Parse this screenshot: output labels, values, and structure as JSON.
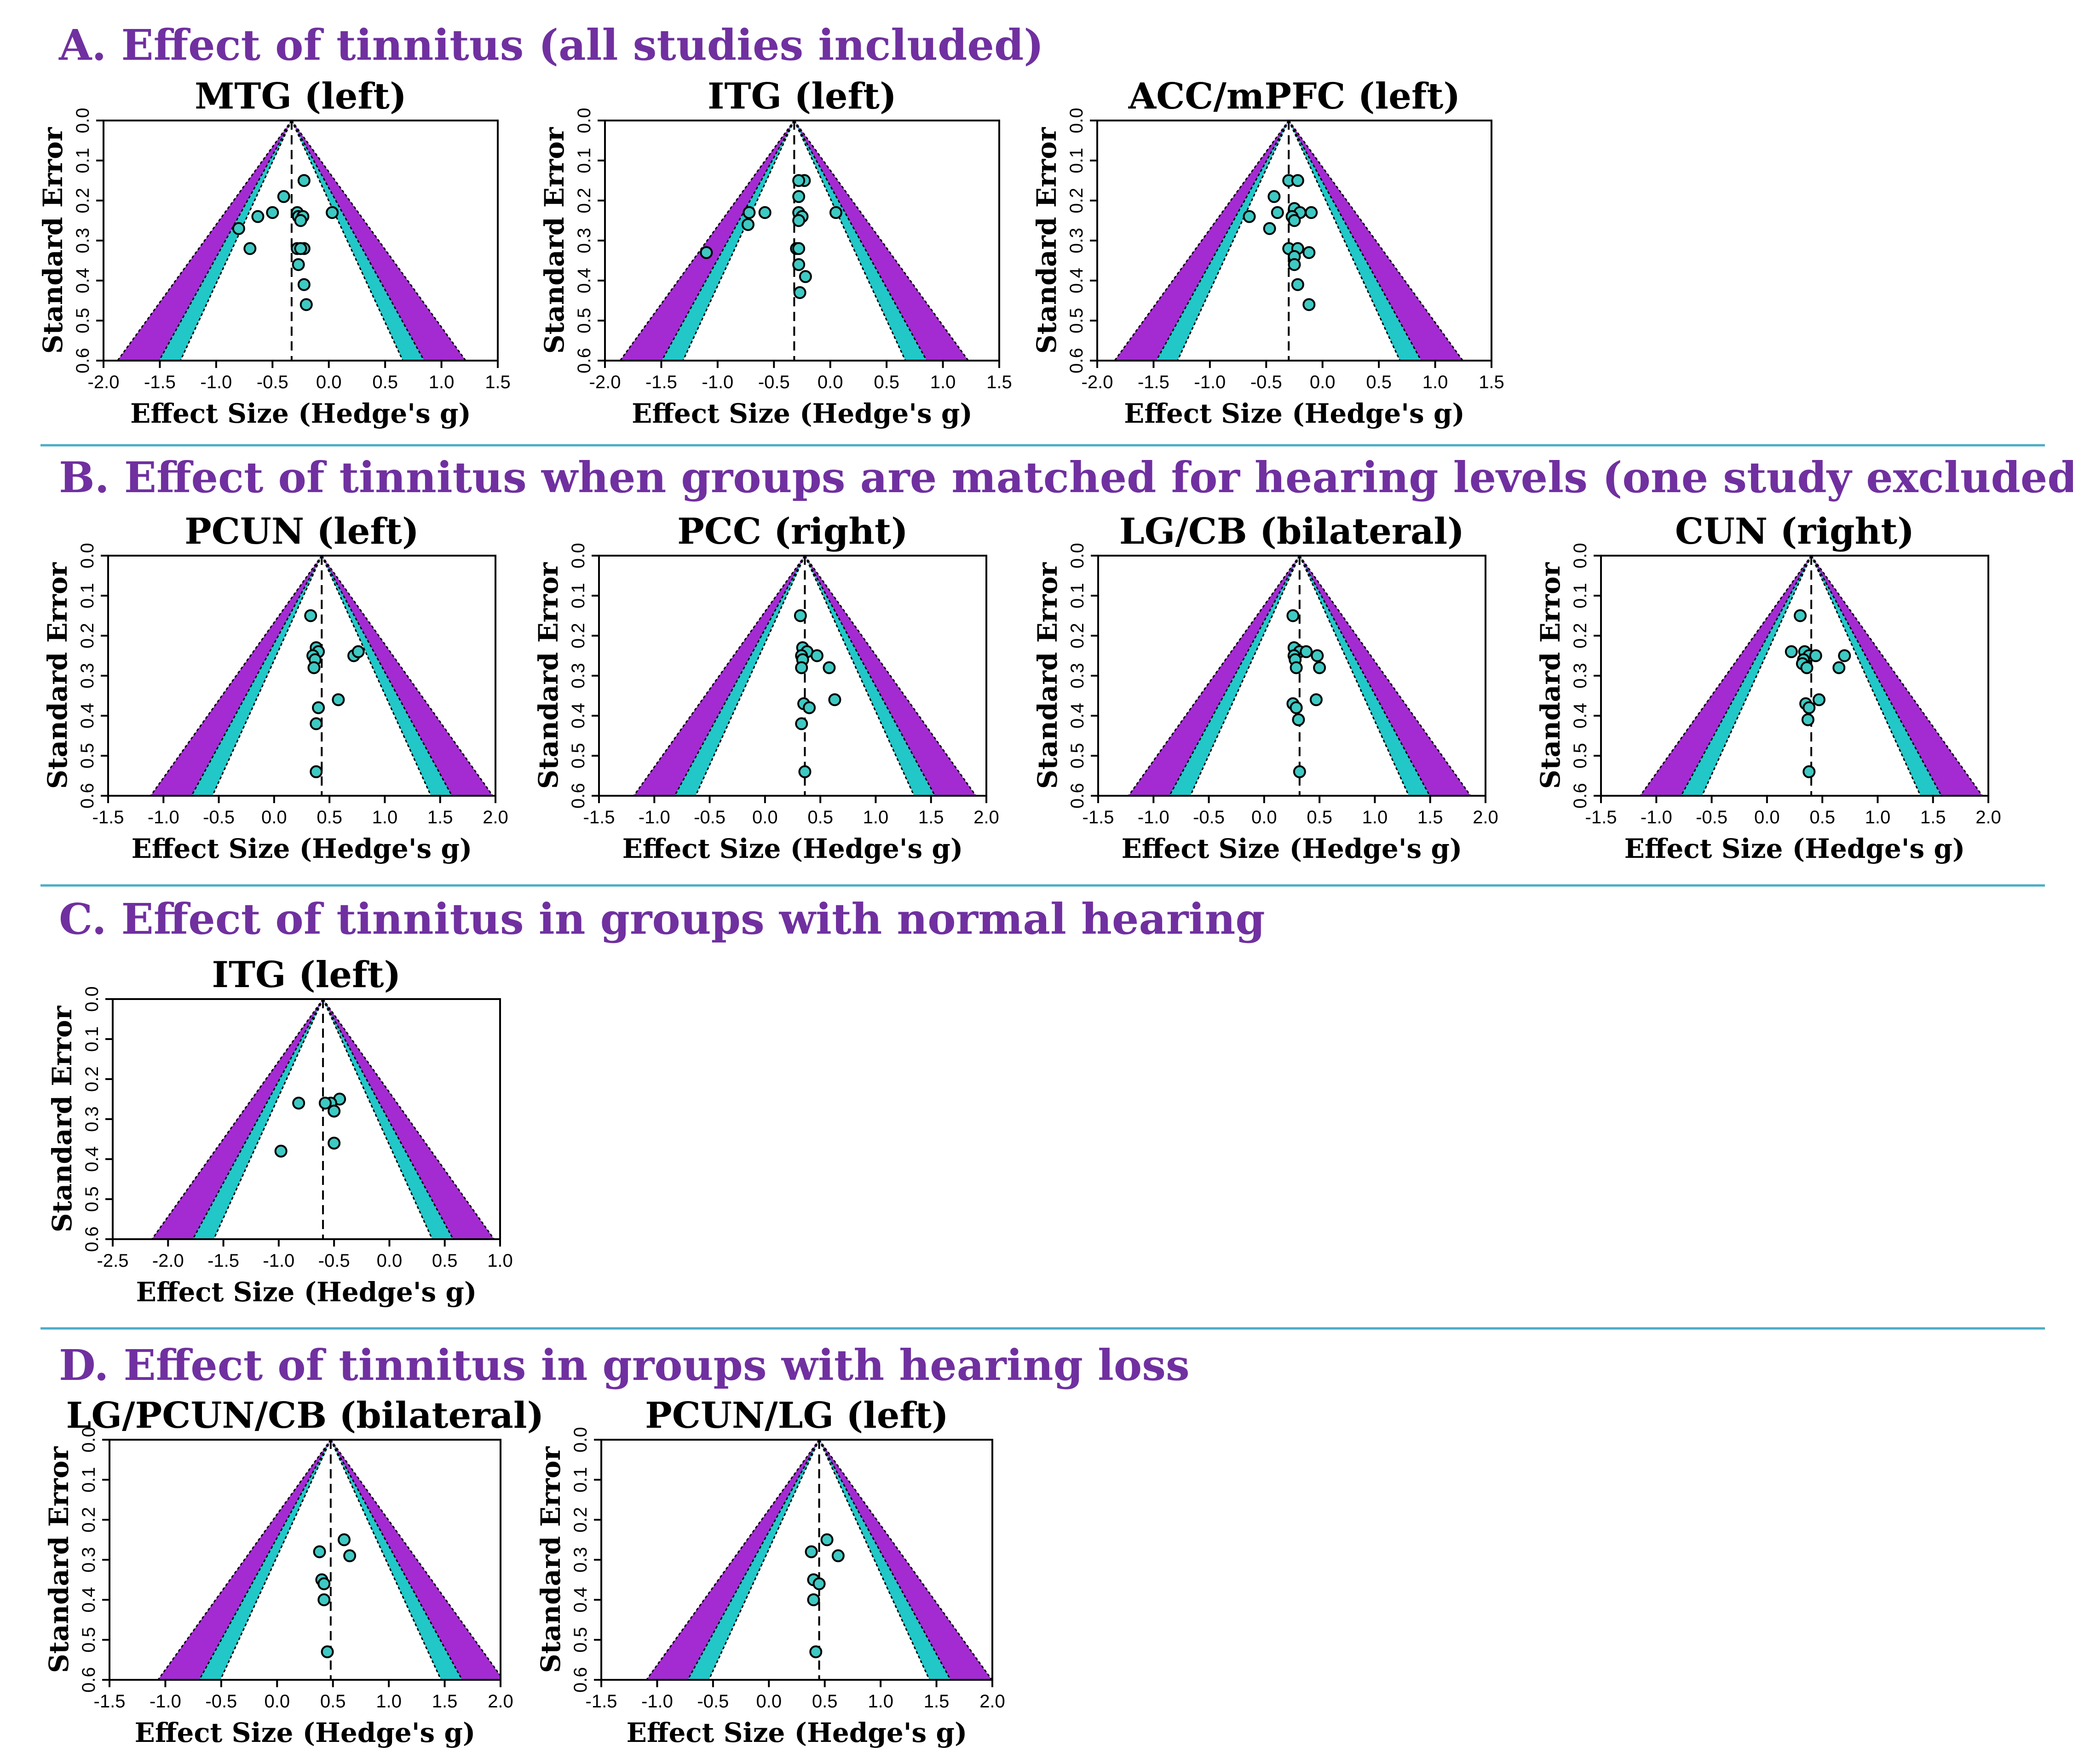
{
  "sections": [
    {
      "title": "A. Effect of tinnitus (all studies included)"
    },
    {
      "title": "B. Effect of tinnitus when groups are matched for hearing levels (one study excluded)"
    },
    {
      "title": "C. Effect of tinnitus in groups with normal hearing"
    },
    {
      "title": "D. Effect of tinnitus in groups with hearing loss"
    }
  ],
  "colors": {
    "section_title": "#7030a0",
    "divider": "#4bacc6",
    "outer_band": "#a32bd1",
    "inner_band": "#22c7c8",
    "point_fill": "#3ec9c3",
    "point_stroke": "#000000"
  },
  "chart_data": [
    {
      "type": "scatter",
      "section": 0,
      "title": "MTG (left)",
      "xlabel": "Effect Size (Hedge's g)",
      "ylabel": "Standard Error",
      "xlim": [
        -2.0,
        1.5
      ],
      "xticks": [
        -2.0,
        -1.5,
        -1.0,
        -0.5,
        0.0,
        0.5,
        1.0,
        1.5
      ],
      "ylim": [
        0,
        0.6
      ],
      "yticks": [
        0.0,
        0.1,
        0.2,
        0.3,
        0.4,
        0.5,
        0.6
      ],
      "y_inverted": true,
      "mean": -0.33,
      "points": [
        [
          -0.22,
          0.15
        ],
        [
          -0.4,
          0.19
        ],
        [
          -0.5,
          0.23
        ],
        [
          -0.63,
          0.24
        ],
        [
          -0.28,
          0.23
        ],
        [
          -0.8,
          0.27
        ],
        [
          -0.27,
          0.24
        ],
        [
          -0.23,
          0.24
        ],
        [
          -0.25,
          0.25
        ],
        [
          0.03,
          0.23
        ],
        [
          -0.7,
          0.32
        ],
        [
          -0.28,
          0.32
        ],
        [
          -0.22,
          0.32
        ],
        [
          -0.25,
          0.32
        ],
        [
          -0.27,
          0.36
        ],
        [
          -0.22,
          0.41
        ],
        [
          -0.2,
          0.46
        ]
      ]
    },
    {
      "type": "scatter",
      "section": 0,
      "title": "ITG (left)",
      "xlabel": "Effect Size (Hedge's g)",
      "ylabel": "Standard Error",
      "xlim": [
        -2.0,
        1.5
      ],
      "xticks": [
        -2.0,
        -1.5,
        -1.0,
        -0.5,
        0.0,
        0.5,
        1.0,
        1.5
      ],
      "ylim": [
        0,
        0.6
      ],
      "yticks": [
        0.0,
        0.1,
        0.2,
        0.3,
        0.4,
        0.5,
        0.6
      ],
      "y_inverted": true,
      "mean": -0.32,
      "points": [
        [
          -0.23,
          0.15
        ],
        [
          -0.28,
          0.15
        ],
        [
          -0.28,
          0.19
        ],
        [
          -0.28,
          0.23
        ],
        [
          -0.25,
          0.24
        ],
        [
          -0.28,
          0.25
        ],
        [
          -0.58,
          0.23
        ],
        [
          -0.72,
          0.23
        ],
        [
          0.05,
          0.23
        ],
        [
          -0.73,
          0.26
        ],
        [
          -0.3,
          0.32
        ],
        [
          -0.28,
          0.32
        ],
        [
          -1.1,
          0.33
        ],
        [
          -0.28,
          0.36
        ],
        [
          -0.22,
          0.39
        ],
        [
          -0.27,
          0.43
        ]
      ]
    },
    {
      "type": "scatter",
      "section": 0,
      "title": "ACC/mPFC (left)",
      "xlabel": "Effect Size (Hedge's g)",
      "ylabel": "Standard Error",
      "xlim": [
        -2.0,
        1.5
      ],
      "xticks": [
        -2.0,
        -1.5,
        -1.0,
        -0.5,
        0.0,
        0.5,
        1.0,
        1.5
      ],
      "ylim": [
        0,
        0.6
      ],
      "yticks": [
        0.0,
        0.1,
        0.2,
        0.3,
        0.4,
        0.5,
        0.6
      ],
      "y_inverted": true,
      "mean": -0.3,
      "points": [
        [
          -0.3,
          0.15
        ],
        [
          -0.22,
          0.15
        ],
        [
          -0.43,
          0.19
        ],
        [
          -0.25,
          0.22
        ],
        [
          -0.4,
          0.23
        ],
        [
          -0.2,
          0.23
        ],
        [
          -0.27,
          0.24
        ],
        [
          -0.25,
          0.25
        ],
        [
          -0.1,
          0.23
        ],
        [
          -0.65,
          0.24
        ],
        [
          -0.47,
          0.27
        ],
        [
          -0.3,
          0.32
        ],
        [
          -0.22,
          0.32
        ],
        [
          -0.25,
          0.34
        ],
        [
          -0.12,
          0.33
        ],
        [
          -0.25,
          0.36
        ],
        [
          -0.22,
          0.41
        ],
        [
          -0.12,
          0.46
        ]
      ]
    },
    {
      "type": "scatter",
      "section": 1,
      "title": "PCUN (left)",
      "xlabel": "Effect Size (Hedge's g)",
      "ylabel": "Standard Error",
      "xlim": [
        -1.5,
        2.0
      ],
      "xticks": [
        -1.5,
        -1.0,
        -0.5,
        0.0,
        0.5,
        1.0,
        1.5,
        2.0
      ],
      "ylim": [
        0,
        0.6
      ],
      "yticks": [
        0.0,
        0.1,
        0.2,
        0.3,
        0.4,
        0.5,
        0.6
      ],
      "y_inverted": true,
      "mean": 0.43,
      "points": [
        [
          0.33,
          0.15
        ],
        [
          0.38,
          0.23
        ],
        [
          0.4,
          0.24
        ],
        [
          0.35,
          0.25
        ],
        [
          0.37,
          0.26
        ],
        [
          0.36,
          0.28
        ],
        [
          0.72,
          0.25
        ],
        [
          0.76,
          0.24
        ],
        [
          0.58,
          0.36
        ],
        [
          0.4,
          0.38
        ],
        [
          0.38,
          0.42
        ],
        [
          0.38,
          0.54
        ]
      ]
    },
    {
      "type": "scatter",
      "section": 1,
      "title": "PCC (right)",
      "xlabel": "Effect Size (Hedge's g)",
      "ylabel": "Standard Error",
      "xlim": [
        -1.5,
        2.0
      ],
      "xticks": [
        -1.5,
        -1.0,
        -0.5,
        0.0,
        0.5,
        1.0,
        1.5,
        2.0
      ],
      "ylim": [
        0,
        0.6
      ],
      "yticks": [
        0.0,
        0.1,
        0.2,
        0.3,
        0.4,
        0.5,
        0.6
      ],
      "y_inverted": true,
      "mean": 0.36,
      "points": [
        [
          0.32,
          0.15
        ],
        [
          0.34,
          0.23
        ],
        [
          0.38,
          0.24
        ],
        [
          0.33,
          0.25
        ],
        [
          0.34,
          0.26
        ],
        [
          0.33,
          0.28
        ],
        [
          0.47,
          0.25
        ],
        [
          0.58,
          0.28
        ],
        [
          0.63,
          0.36
        ],
        [
          0.35,
          0.37
        ],
        [
          0.4,
          0.38
        ],
        [
          0.33,
          0.42
        ],
        [
          0.36,
          0.54
        ]
      ]
    },
    {
      "type": "scatter",
      "section": 1,
      "title": "LG/CB (bilateral)",
      "xlabel": "Effect Size (Hedge's g)",
      "ylabel": "Standard Error",
      "xlim": [
        -1.5,
        2.0
      ],
      "xticks": [
        -1.5,
        -1.0,
        -0.5,
        0.0,
        0.5,
        1.0,
        1.5,
        2.0
      ],
      "ylim": [
        0,
        0.6
      ],
      "yticks": [
        0.0,
        0.1,
        0.2,
        0.3,
        0.4,
        0.5,
        0.6
      ],
      "y_inverted": true,
      "mean": 0.32,
      "points": [
        [
          0.26,
          0.15
        ],
        [
          0.27,
          0.23
        ],
        [
          0.32,
          0.24
        ],
        [
          0.27,
          0.25
        ],
        [
          0.28,
          0.26
        ],
        [
          0.29,
          0.28
        ],
        [
          0.38,
          0.24
        ],
        [
          0.48,
          0.25
        ],
        [
          0.5,
          0.28
        ],
        [
          0.47,
          0.36
        ],
        [
          0.26,
          0.37
        ],
        [
          0.29,
          0.38
        ],
        [
          0.31,
          0.41
        ],
        [
          0.32,
          0.54
        ]
      ]
    },
    {
      "type": "scatter",
      "section": 1,
      "title": "CUN (right)",
      "xlabel": "Effect Size (Hedge's g)",
      "ylabel": "Standard Error",
      "xlim": [
        -1.5,
        2.0
      ],
      "xticks": [
        -1.5,
        -1.0,
        -0.5,
        0.0,
        0.5,
        1.0,
        1.5,
        2.0
      ],
      "ylim": [
        0,
        0.6
      ],
      "yticks": [
        0.0,
        0.1,
        0.2,
        0.3,
        0.4,
        0.5,
        0.6
      ],
      "y_inverted": true,
      "mean": 0.4,
      "points": [
        [
          0.3,
          0.15
        ],
        [
          0.22,
          0.24
        ],
        [
          0.34,
          0.24
        ],
        [
          0.38,
          0.25
        ],
        [
          0.44,
          0.25
        ],
        [
          0.33,
          0.26
        ],
        [
          0.32,
          0.27
        ],
        [
          0.36,
          0.28
        ],
        [
          0.7,
          0.25
        ],
        [
          0.65,
          0.28
        ],
        [
          0.47,
          0.36
        ],
        [
          0.35,
          0.37
        ],
        [
          0.38,
          0.38
        ],
        [
          0.37,
          0.41
        ],
        [
          0.38,
          0.54
        ]
      ]
    },
    {
      "type": "scatter",
      "section": 2,
      "title": "ITG (left)",
      "xlabel": "Effect Size (Hedge's g)",
      "ylabel": "Standard Error",
      "xlim": [
        -2.5,
        1.0
      ],
      "xticks": [
        -2.5,
        -2.0,
        -1.5,
        -1.0,
        -0.5,
        0.0,
        0.5,
        1.0
      ],
      "ylim": [
        0,
        0.6
      ],
      "yticks": [
        0.0,
        0.1,
        0.2,
        0.3,
        0.4,
        0.5,
        0.6
      ],
      "y_inverted": true,
      "mean": -0.6,
      "points": [
        [
          -0.45,
          0.25
        ],
        [
          -0.53,
          0.26
        ],
        [
          -0.58,
          0.26
        ],
        [
          -0.5,
          0.28
        ],
        [
          -0.82,
          0.26
        ],
        [
          -0.5,
          0.36
        ],
        [
          -0.98,
          0.38
        ]
      ]
    },
    {
      "type": "scatter",
      "section": 3,
      "title": "LG/PCUN/CB (bilateral)",
      "xlabel": "Effect Size (Hedge's g)",
      "ylabel": "Standard Error",
      "xlim": [
        -1.5,
        2.0
      ],
      "xticks": [
        -1.5,
        -1.0,
        -0.5,
        0.0,
        0.5,
        1.0,
        1.5,
        2.0
      ],
      "ylim": [
        0,
        0.6
      ],
      "yticks": [
        0.0,
        0.1,
        0.2,
        0.3,
        0.4,
        0.5,
        0.6
      ],
      "y_inverted": true,
      "mean": 0.48,
      "points": [
        [
          0.6,
          0.25
        ],
        [
          0.38,
          0.28
        ],
        [
          0.65,
          0.29
        ],
        [
          0.4,
          0.35
        ],
        [
          0.42,
          0.36
        ],
        [
          0.42,
          0.4
        ],
        [
          0.45,
          0.53
        ]
      ]
    },
    {
      "type": "scatter",
      "section": 3,
      "title": "PCUN/LG (left)",
      "xlabel": "Effect Size (Hedge's g)",
      "ylabel": "Standard Error",
      "xlim": [
        -1.5,
        2.0
      ],
      "xticks": [
        -1.5,
        -1.0,
        -0.5,
        0.0,
        0.5,
        1.0,
        1.5,
        2.0
      ],
      "ylim": [
        0,
        0.6
      ],
      "yticks": [
        0.0,
        0.1,
        0.2,
        0.3,
        0.4,
        0.5,
        0.6
      ],
      "y_inverted": true,
      "mean": 0.45,
      "points": [
        [
          0.52,
          0.25
        ],
        [
          0.62,
          0.29
        ],
        [
          0.38,
          0.28
        ],
        [
          0.4,
          0.35
        ],
        [
          0.45,
          0.36
        ],
        [
          0.4,
          0.4
        ],
        [
          0.42,
          0.53
        ]
      ]
    }
  ]
}
